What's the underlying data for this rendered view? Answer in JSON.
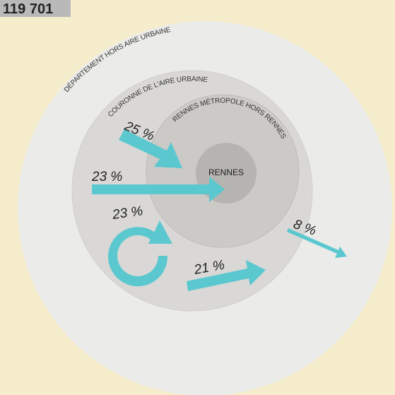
{
  "header": {
    "count": "119 701"
  },
  "zones": {
    "outer": "DÉPARTEMENT HORS AIRE URBAINE",
    "ring": "COURONNE DE L'AIRE URBAINE",
    "metro": "RENNES MÉTROPOLE HORS RENNES",
    "center": "RENNES"
  },
  "flows": [
    "25 %",
    "23 %",
    "23 %",
    "21 %",
    "8 %"
  ]
}
